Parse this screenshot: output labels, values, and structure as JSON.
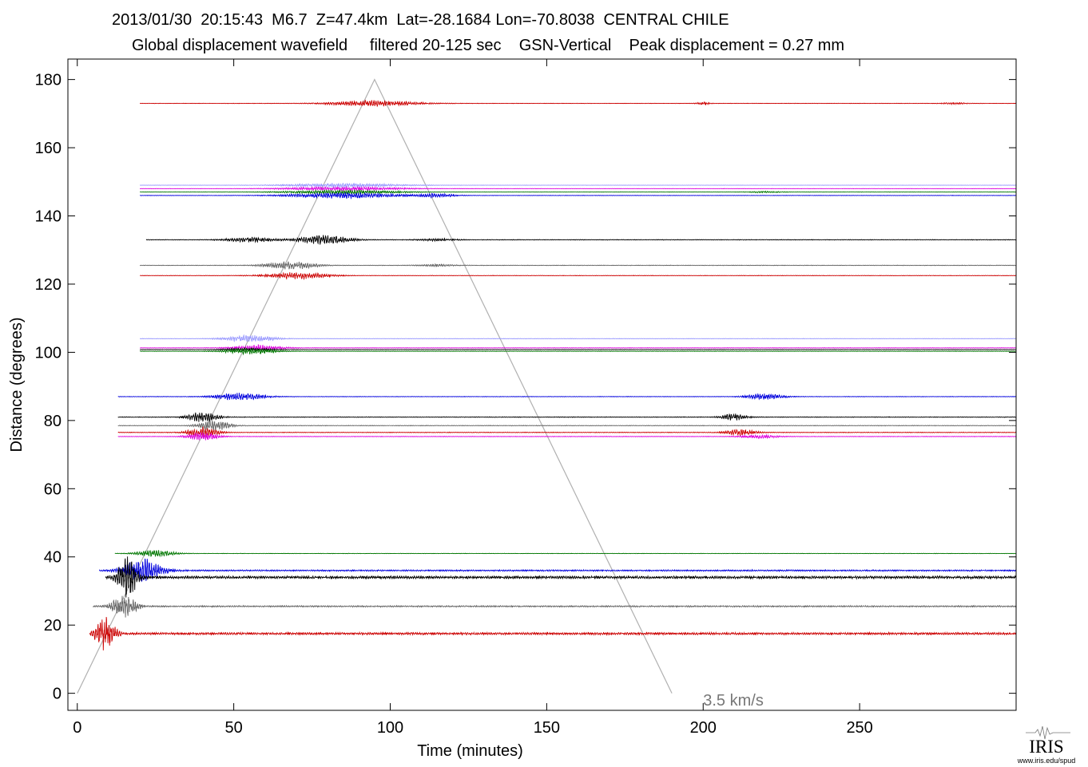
{
  "chart_data": {
    "type": "line",
    "title": "2013/01/30  20:15:43  M6.7  Z=47.4km  Lat=-28.1684 Lon=-70.8038  CENTRAL CHILE",
    "subtitle": "Global displacement wavefield     filtered 20-125 sec    GSN-Vertical    Peak displacement = 0.27 mm",
    "xlabel": "Time (minutes)",
    "ylabel": "Distance (degrees)",
    "xlim": [
      -3,
      300
    ],
    "ylim": [
      -5,
      186
    ],
    "xticks": [
      0,
      50,
      100,
      150,
      200,
      250
    ],
    "yticks": [
      0,
      20,
      40,
      60,
      80,
      100,
      120,
      140,
      160,
      180
    ],
    "grid": false,
    "annotation": {
      "text": "3.5 km/s",
      "x": 200,
      "y": -2
    },
    "reference_line": {
      "name": "3.5 km/s",
      "x": [
        0,
        95,
        190
      ],
      "y": [
        0,
        180,
        0
      ],
      "color": "#b0b0b0"
    },
    "colors": {
      "red": "#cc0000",
      "black": "#000000",
      "gray": "#666666",
      "green": "#007700",
      "blue": "#0000dd",
      "magenta": "#dd00dd",
      "lightblue": "#9999ff"
    },
    "traces": [
      {
        "distance": 173,
        "start": 20,
        "end": 300,
        "color": "red",
        "amp": 3.5,
        "bursts": [
          [
            95,
            14,
            1.0
          ],
          [
            200,
            2,
            0.5
          ],
          [
            280,
            4,
            0.3
          ]
        ]
      },
      {
        "distance": 149,
        "start": 20,
        "end": 300,
        "color": "lightblue",
        "amp": 2.5,
        "bursts": [
          [
            85,
            18,
            1.0
          ]
        ]
      },
      {
        "distance": 148,
        "start": 20,
        "end": 300,
        "color": "magenta",
        "amp": 2.5,
        "bursts": [
          [
            85,
            18,
            1.0
          ]
        ]
      },
      {
        "distance": 147,
        "start": 20,
        "end": 300,
        "color": "green",
        "amp": 2.5,
        "bursts": [
          [
            85,
            18,
            1.0
          ],
          [
            220,
            6,
            0.3
          ]
        ]
      },
      {
        "distance": 146,
        "start": 20,
        "end": 300,
        "color": "blue",
        "amp": 3.5,
        "bursts": [
          [
            85,
            18,
            1.0
          ],
          [
            115,
            6,
            0.6
          ]
        ]
      },
      {
        "distance": 133,
        "start": 22,
        "end": 300,
        "color": "black",
        "amp": 5.5,
        "bursts": [
          [
            55,
            8,
            0.5
          ],
          [
            79,
            8,
            1.0
          ],
          [
            115,
            6,
            0.25
          ]
        ]
      },
      {
        "distance": 125.5,
        "start": 20,
        "end": 300,
        "color": "gray",
        "amp": 5,
        "bursts": [
          [
            68,
            8,
            1.0
          ],
          [
            115,
            6,
            0.25
          ]
        ]
      },
      {
        "distance": 122.5,
        "start": 20,
        "end": 300,
        "color": "red",
        "amp": 4,
        "bursts": [
          [
            70,
            10,
            1.0
          ]
        ]
      },
      {
        "distance": 104,
        "start": 20,
        "end": 300,
        "color": "lightblue",
        "amp": 4,
        "bursts": [
          [
            55,
            8,
            1.0
          ]
        ]
      },
      {
        "distance": 101.3,
        "start": 20,
        "end": 300,
        "color": "magenta",
        "amp": 3.5,
        "bursts": [
          [
            58,
            8,
            1.0
          ]
        ]
      },
      {
        "distance": 100.8,
        "start": 20,
        "end": 300,
        "color": "black",
        "amp": 2,
        "bursts": [
          [
            55,
            8,
            1.0
          ]
        ]
      },
      {
        "distance": 100.3,
        "start": 20,
        "end": 300,
        "color": "green",
        "amp": 3.5,
        "bursts": [
          [
            55,
            8,
            1.0
          ]
        ]
      },
      {
        "distance": 87,
        "start": 13,
        "end": 300,
        "color": "blue",
        "amp": 4.5,
        "bursts": [
          [
            52,
            8,
            1.0
          ],
          [
            220,
            6,
            0.8
          ]
        ]
      },
      {
        "distance": 81,
        "start": 13,
        "end": 300,
        "color": "black",
        "amp": 6,
        "bursts": [
          [
            40,
            5,
            1.0
          ],
          [
            210,
            4,
            0.7
          ]
        ]
      },
      {
        "distance": 78.5,
        "start": 13,
        "end": 300,
        "color": "gray",
        "amp": 6,
        "bursts": [
          [
            44,
            5,
            1.0
          ]
        ]
      },
      {
        "distance": 76.5,
        "start": 13,
        "end": 300,
        "color": "red",
        "amp": 6,
        "bursts": [
          [
            40,
            5,
            1.0
          ],
          [
            212,
            5,
            0.6
          ]
        ]
      },
      {
        "distance": 75.3,
        "start": 13,
        "end": 300,
        "color": "magenta",
        "amp": 5,
        "bursts": [
          [
            40,
            5,
            1.0
          ],
          [
            218,
            6,
            0.4
          ]
        ]
      },
      {
        "distance": 41,
        "start": 12,
        "end": 300,
        "color": "green",
        "amp": 4,
        "bursts": [
          [
            25,
            6,
            1.0
          ]
        ]
      },
      {
        "distance": 36,
        "start": 7,
        "end": 300,
        "color": "blue",
        "amp": 14,
        "bursts": [
          [
            21,
            6,
            1.0
          ]
        ]
      },
      {
        "distance": 34,
        "start": 9,
        "end": 300,
        "color": "black",
        "amp": 26,
        "bursts": [
          [
            16,
            3,
            1.0
          ]
        ]
      },
      {
        "distance": 25.5,
        "start": 5,
        "end": 300,
        "color": "gray",
        "amp": 14,
        "bursts": [
          [
            15,
            4,
            1.0
          ]
        ]
      },
      {
        "distance": 17.5,
        "start": 4,
        "end": 300,
        "color": "red",
        "amp": 22,
        "bursts": [
          [
            9,
            3,
            1.0
          ]
        ]
      }
    ]
  },
  "logo": {
    "name": "IRIS",
    "caption": "www.iris.edu/spud"
  }
}
